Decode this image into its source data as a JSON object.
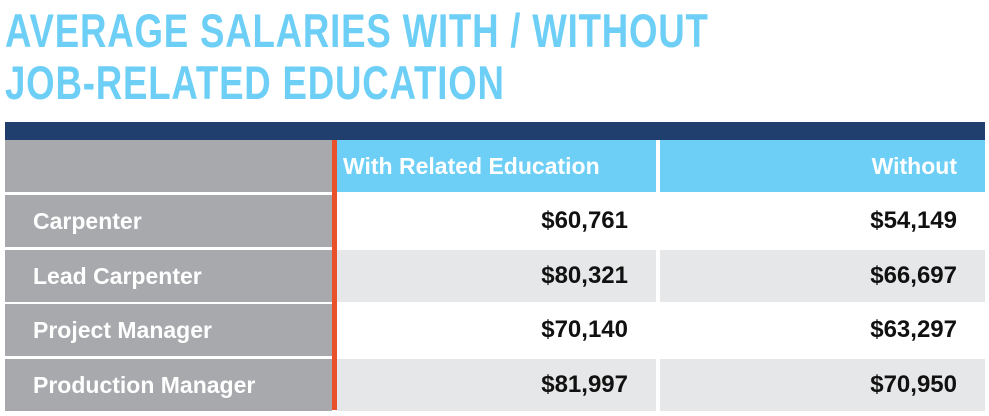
{
  "title": {
    "lines": [
      "AVERAGE SALARIES WITH / WITHOUT",
      "JOB-RELATED EDUCATION"
    ]
  },
  "table": {
    "columns": [
      "With Related Education",
      "Without"
    ],
    "rows": [
      [
        "Carpenter",
        "$60,761",
        "$54,149"
      ],
      [
        "Lead Carpenter",
        "$80,321",
        "$66,697"
      ],
      [
        "Project Manager",
        "$70,140",
        "$63,297"
      ],
      [
        "Production Manager",
        "$81,997",
        "$70,950"
      ]
    ]
  }
}
